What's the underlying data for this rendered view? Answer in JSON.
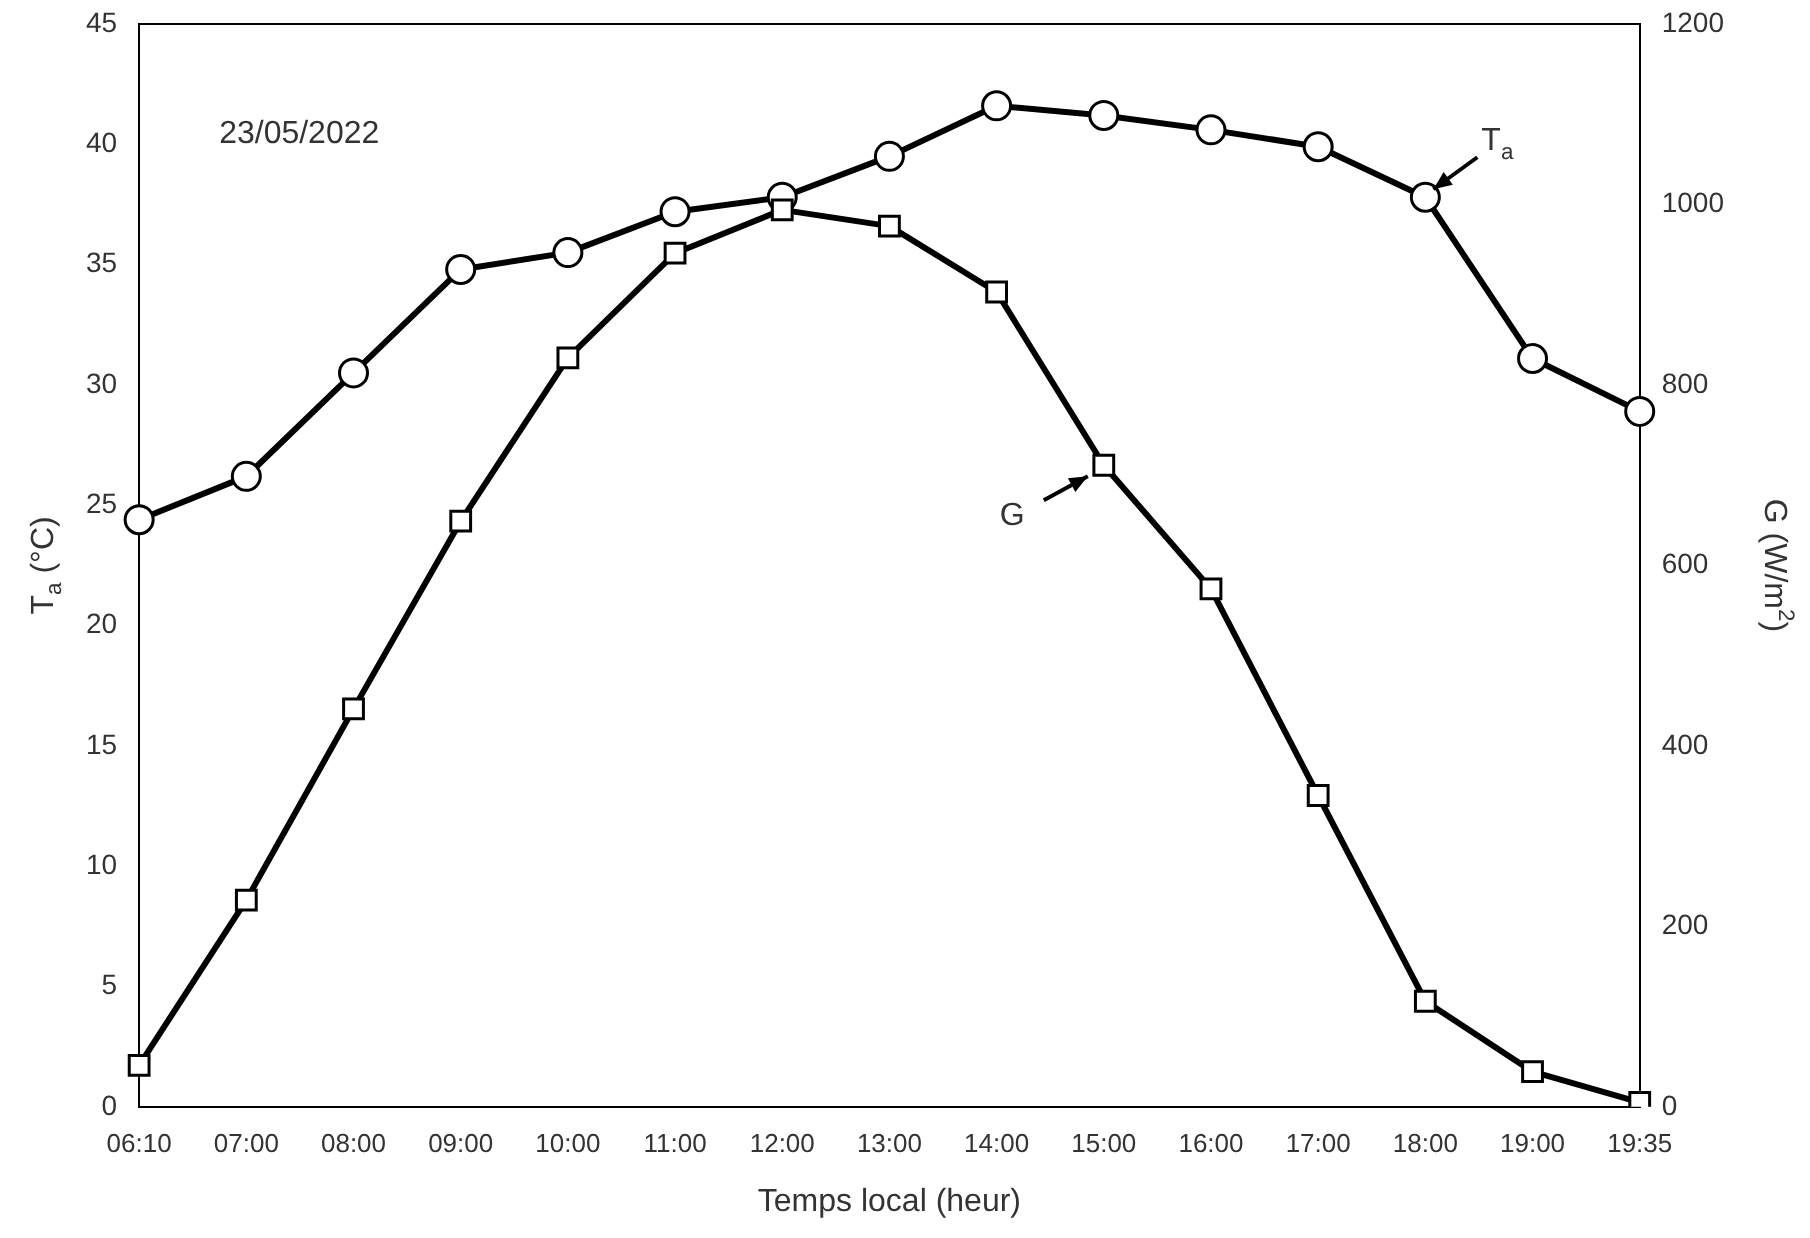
{
  "chart_data": {
    "type": "line",
    "xlabel": "Temps local (heur)",
    "ylabel": "T$_{a}$ (°C)",
    "y2label": "G (W/m$^{2}$)",
    "categories": [
      "06:10",
      "07:00",
      "08:00",
      "09:00",
      "10:00",
      "11:00",
      "12:00",
      "13:00",
      "14:00",
      "15:00",
      "16:00",
      "17:00",
      "18:00",
      "19:00",
      "19:35"
    ],
    "series": [
      {
        "color": "#000000",
        "marker": "circle",
        "values": [
          24.4,
          26.2,
          30.5,
          34.8,
          35.5,
          37.2,
          37.8,
          39.5,
          41.6,
          41.2,
          40.6,
          39.9,
          37.8,
          31.1,
          28.9
        ]
      },
      {
        "color": "#000000",
        "marker": "square",
        "axis": "y2",
        "values": [
          46,
          229,
          441,
          649,
          830,
          946,
          994,
          976,
          903,
          711,
          574,
          345,
          117,
          39,
          5
        ]
      }
    ],
    "ylim": [
      0,
      45
    ],
    "yticks": [
      0,
      5,
      10,
      15,
      20,
      25,
      30,
      35,
      40,
      45
    ],
    "y2lim": [
      0,
      1200
    ],
    "y2ticks": [
      0,
      200,
      400,
      600,
      800,
      1000,
      1200
    ],
    "grid": false,
    "legend": false,
    "line_style": "solid",
    "annotations": [
      "23/05/2022",
      {
        "text": "T$_{a}$",
        "x": "18:00",
        "y": 37.8
      },
      {
        "text": "G",
        "x": "15:00",
        "y": 26.7
      }
    ]
  }
}
